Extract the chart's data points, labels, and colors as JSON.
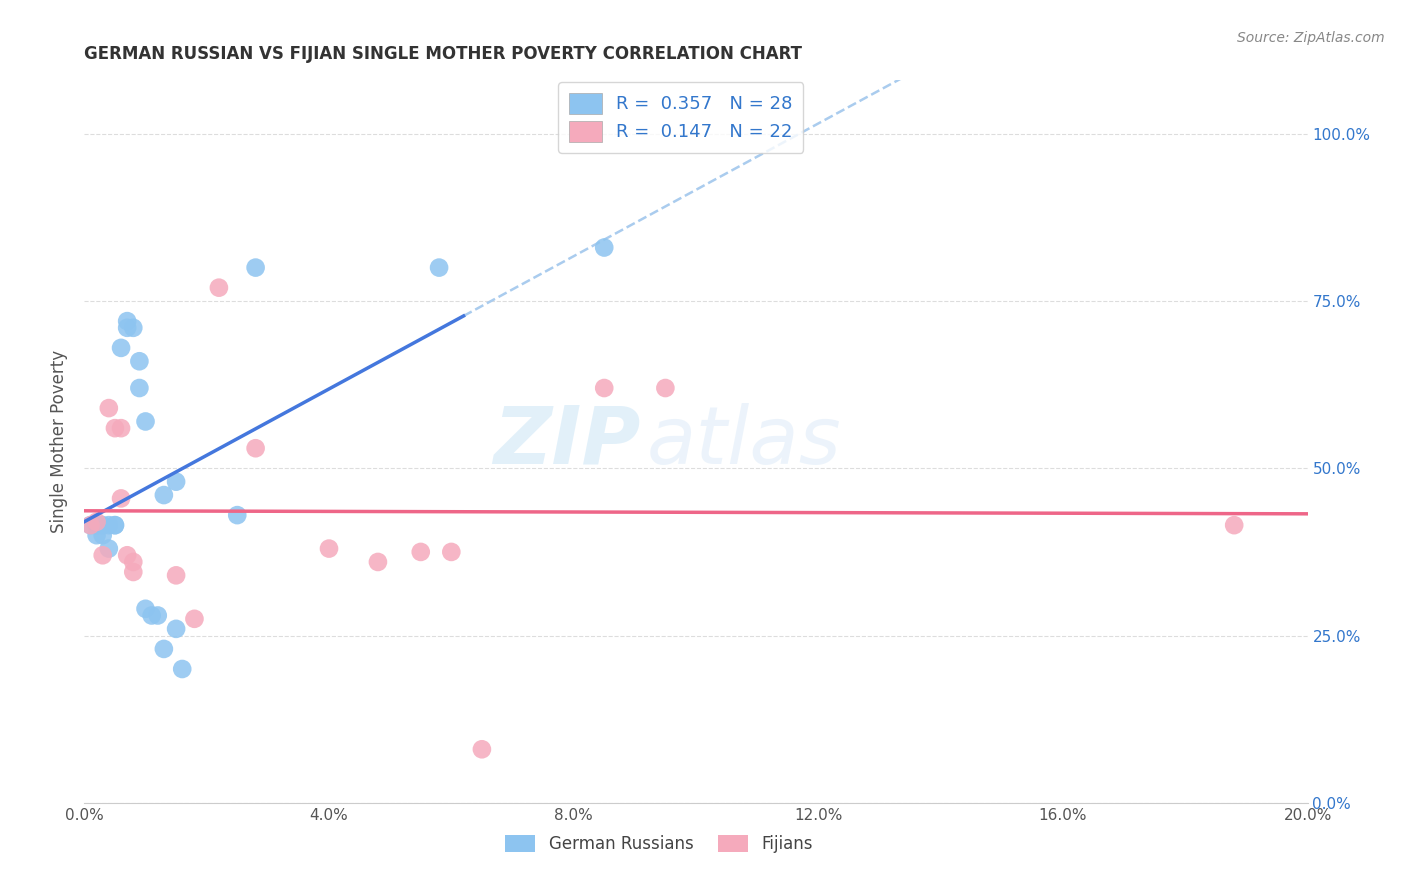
{
  "title": "GERMAN RUSSIAN VS FIJIAN SINGLE MOTHER POVERTY CORRELATION CHART",
  "source": "Source: ZipAtlas.com",
  "ylabel": "Single Mother Poverty",
  "legend_label1": "German Russians",
  "legend_label2": "Fijians",
  "R1": "0.357",
  "N1": "28",
  "R2": "0.147",
  "N2": "22",
  "xlim": [
    0.0,
    0.2
  ],
  "ylim": [
    0.0,
    1.08
  ],
  "xticks": [
    0.0,
    0.04,
    0.08,
    0.12,
    0.16,
    0.2
  ],
  "yticks_right": [
    0.0,
    0.25,
    0.5,
    0.75,
    1.0
  ],
  "color_blue": "#8DC4F0",
  "color_pink": "#F5AABC",
  "color_line_blue": "#4477DD",
  "color_line_pink": "#EE6688",
  "color_dashed": "#AACCEE",
  "blue_scatter": [
    [
      0.001,
      0.415
    ],
    [
      0.002,
      0.415
    ],
    [
      0.002,
      0.4
    ],
    [
      0.003,
      0.415
    ],
    [
      0.003,
      0.4
    ],
    [
      0.004,
      0.415
    ],
    [
      0.004,
      0.38
    ],
    [
      0.005,
      0.415
    ],
    [
      0.005,
      0.415
    ],
    [
      0.006,
      0.68
    ],
    [
      0.007,
      0.72
    ],
    [
      0.007,
      0.71
    ],
    [
      0.008,
      0.71
    ],
    [
      0.009,
      0.66
    ],
    [
      0.009,
      0.62
    ],
    [
      0.01,
      0.57
    ],
    [
      0.01,
      0.29
    ],
    [
      0.011,
      0.28
    ],
    [
      0.012,
      0.28
    ],
    [
      0.013,
      0.23
    ],
    [
      0.013,
      0.46
    ],
    [
      0.015,
      0.26
    ],
    [
      0.015,
      0.48
    ],
    [
      0.016,
      0.2
    ],
    [
      0.025,
      0.43
    ],
    [
      0.028,
      0.8
    ],
    [
      0.058,
      0.8
    ],
    [
      0.085,
      0.83
    ]
  ],
  "pink_scatter": [
    [
      0.001,
      0.415
    ],
    [
      0.002,
      0.42
    ],
    [
      0.003,
      0.37
    ],
    [
      0.004,
      0.59
    ],
    [
      0.005,
      0.56
    ],
    [
      0.006,
      0.56
    ],
    [
      0.006,
      0.455
    ],
    [
      0.007,
      0.37
    ],
    [
      0.008,
      0.345
    ],
    [
      0.008,
      0.36
    ],
    [
      0.015,
      0.34
    ],
    [
      0.018,
      0.275
    ],
    [
      0.022,
      0.77
    ],
    [
      0.028,
      0.53
    ],
    [
      0.04,
      0.38
    ],
    [
      0.048,
      0.36
    ],
    [
      0.055,
      0.375
    ],
    [
      0.06,
      0.375
    ],
    [
      0.085,
      0.62
    ],
    [
      0.095,
      0.62
    ],
    [
      0.188,
      0.415
    ],
    [
      0.065,
      0.08
    ]
  ],
  "watermark_zip": "ZIP",
  "watermark_atlas": "atlas",
  "background_color": "#FFFFFF",
  "grid_color": "#DDDDDD",
  "blue_line_x_start": 0.0,
  "blue_line_x_end": 0.062,
  "dashed_line_x_start": 0.062,
  "dashed_line_x_end": 0.2
}
